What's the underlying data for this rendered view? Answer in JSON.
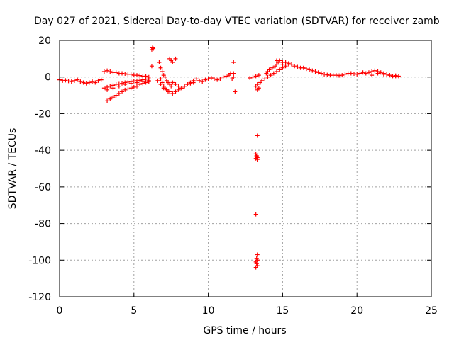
{
  "chart_data": {
    "type": "scatter",
    "title": "Day 027 of 2021, Sidereal Day-to-day VTEC variation (SDTVAR) for receiver zamb",
    "xlabel": "GPS time / hours",
    "ylabel": "SDTVAR / TECUs",
    "xlim": [
      0,
      25
    ],
    "ylim": [
      -120,
      20
    ],
    "xticks": [
      "0",
      "5",
      "10",
      "15",
      "20",
      "25"
    ],
    "yticks": [
      "20",
      "0",
      "-20",
      "-40",
      "-60",
      "-80",
      "-100",
      "-120"
    ],
    "grid": true,
    "marker": "+",
    "series_color": "#ff0000",
    "series": [
      {
        "name": "SDTVAR",
        "x": [
          0.0,
          0.2,
          0.4,
          0.6,
          0.8,
          1.0,
          1.2,
          1.4,
          1.6,
          1.8,
          2.0,
          2.2,
          2.4,
          2.6,
          2.8,
          3.0,
          3.2,
          3.4,
          3.6,
          3.8,
          4.0,
          4.2,
          4.4,
          4.6,
          4.8,
          5.0,
          5.2,
          5.4,
          5.6,
          5.8,
          6.0,
          3.2,
          3.4,
          3.6,
          3.8,
          4.0,
          4.2,
          4.4,
          4.6,
          4.8,
          5.0,
          5.2,
          5.4,
          5.6,
          5.8,
          6.0,
          3.0,
          3.2,
          3.4,
          3.6,
          3.8,
          4.0,
          4.2,
          4.4,
          4.6,
          4.8,
          5.0,
          5.2,
          5.4,
          5.6,
          5.8,
          6.0,
          3.2,
          3.6,
          4.0,
          4.4,
          4.8,
          5.2,
          5.6,
          6.0,
          6.2,
          6.25,
          6.3,
          6.2,
          6.7,
          6.8,
          6.9,
          7.0,
          7.1,
          7.2,
          7.3,
          7.4,
          7.5,
          6.8,
          6.9,
          7.0,
          7.1,
          7.2,
          7.3,
          6.6,
          6.8,
          7.0,
          7.2,
          7.4,
          7.6,
          7.8,
          8.0,
          8.2,
          8.4,
          8.6,
          8.8,
          9.0,
          7.6,
          7.8,
          8.0,
          8.2,
          8.4,
          8.6,
          8.8,
          9.0,
          9.2,
          7.4,
          7.5,
          7.6,
          7.8,
          9.4,
          9.6,
          9.8,
          10.0,
          10.2,
          10.4,
          10.6,
          10.8,
          11.0,
          11.2,
          11.4,
          11.5,
          11.6,
          11.7,
          11.8,
          11.7,
          11.7,
          12.8,
          13.0,
          13.2,
          13.4,
          13.3,
          13.2,
          13.3,
          13.4,
          13.5,
          13.6,
          13.8,
          14.0,
          14.2,
          14.4,
          14.6,
          14.8,
          15.0,
          15.2,
          15.4,
          13.9,
          14.0,
          14.1,
          14.3,
          14.5,
          14.6,
          14.7,
          15.0,
          14.6,
          14.8,
          15.0,
          15.2,
          15.4,
          15.6,
          15.8,
          16.0,
          16.2,
          16.4,
          16.6,
          16.8,
          17.0,
          17.2,
          17.4,
          17.6,
          17.8,
          18.0,
          18.2,
          18.4,
          18.6,
          18.8,
          19.0,
          19.2,
          19.4,
          19.6,
          19.8,
          20.0,
          20.2,
          20.4,
          20.6,
          20.8,
          21.0,
          21.2,
          21.4,
          21.6,
          21.8,
          22.0,
          22.2,
          22.4,
          22.6,
          22.8,
          21.0,
          21.4,
          21.8,
          22.2,
          22.6,
          13.3,
          13.2,
          13.25,
          13.3,
          13.2,
          13.3,
          13.2,
          13.3,
          13.25,
          13.3,
          13.2,
          13.25,
          13.3,
          13.2,
          13.3,
          13.25
        ],
        "y": [
          -1.5,
          -2,
          -1.8,
          -2.2,
          -2.5,
          -2,
          -1.5,
          -2.5,
          -3,
          -3.5,
          -3,
          -2.5,
          -3,
          -2,
          -1.5,
          3,
          3.5,
          3,
          2.5,
          2.5,
          2,
          2,
          1.8,
          1.5,
          1.5,
          1,
          1,
          0.8,
          0.5,
          0.5,
          0,
          -13,
          -12,
          -11,
          -10,
          -9,
          -8,
          -7,
          -6.5,
          -6,
          -5.5,
          -5,
          -4,
          -3.5,
          -3,
          -2.5,
          -6,
          -5.5,
          -5,
          -4.5,
          -4,
          -3.8,
          -3.5,
          -3,
          -2.8,
          -2.5,
          -2.2,
          -2,
          -1.8,
          -1.5,
          -1.2,
          -1,
          -7,
          -6,
          -5,
          -4,
          -3.5,
          -3,
          -2.5,
          -2,
          15,
          16,
          15.5,
          6,
          8,
          5,
          3,
          1,
          0,
          -2,
          -3,
          -4,
          -5,
          -1,
          -3,
          -5,
          -6,
          -7,
          -8,
          -2,
          -4,
          -6,
          -7,
          -8,
          -9,
          -8,
          -7,
          -6,
          -5,
          -4,
          -3.5,
          -3,
          -3,
          -4,
          -5,
          -6,
          -5,
          -4,
          -3,
          -2,
          -1,
          10,
          9,
          8,
          10,
          -2,
          -2.5,
          -1.5,
          -1,
          -0.5,
          -1,
          -1.5,
          -1,
          0,
          0.5,
          1,
          2,
          -1,
          0,
          -8,
          8,
          2,
          -0.5,
          0,
          0.5,
          1,
          -4,
          -5,
          -7,
          -6,
          -3,
          -2,
          -1,
          0,
          1,
          2,
          3,
          4,
          5,
          6,
          7,
          2,
          3,
          4,
          5,
          6,
          7,
          8,
          7,
          9,
          9,
          8,
          8,
          7.5,
          7,
          6,
          5.5,
          5,
          5,
          4.5,
          4,
          3.5,
          3,
          2.5,
          2,
          1.5,
          1.2,
          1,
          1,
          1,
          0.8,
          1,
          1.5,
          2,
          2,
          1.8,
          1.5,
          2,
          2.5,
          2,
          2.5,
          3,
          3.5,
          3,
          2.5,
          2,
          1.5,
          1,
          0.5,
          0.8,
          0.5,
          1,
          2,
          1.5,
          1,
          0.5,
          -32,
          -42,
          -43,
          -44,
          -44.5,
          -45,
          -75,
          -97,
          -99,
          -100,
          -101,
          -102,
          -103,
          -104,
          -45,
          -43.5
        ]
      }
    ]
  }
}
